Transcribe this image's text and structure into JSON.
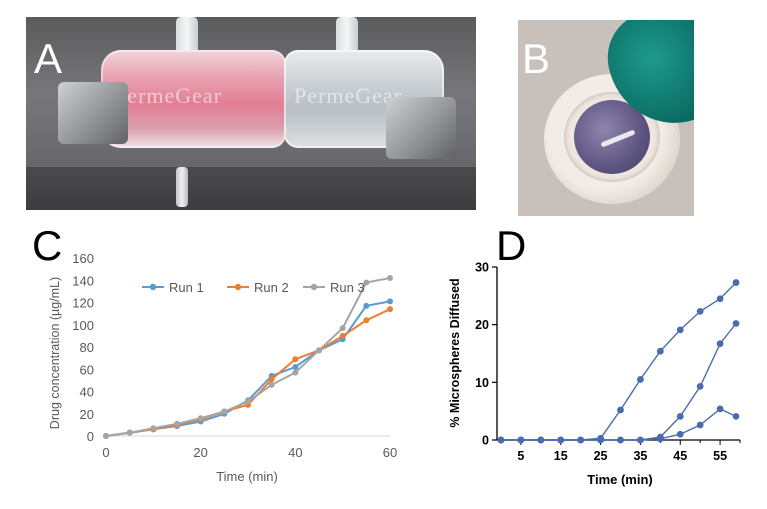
{
  "panels": {
    "a": {
      "letter": "A",
      "brand_left": "PermeGear",
      "brand_right": "PermeGear"
    },
    "b": {
      "letter": "B"
    },
    "c": {
      "letter": "C"
    },
    "d": {
      "letter": "D"
    }
  },
  "colors": {
    "run1": "#5b9bd5",
    "run2": "#ed7d31",
    "run3": "#a5a5a5",
    "panel_d_series": "#4a6cae",
    "axis_c": "#d9d9d9",
    "text_c": "#595959"
  },
  "chart_data": [
    {
      "id": "C",
      "type": "line",
      "title": "",
      "xlabel": "Time (min)",
      "ylabel": "Drug concentration (µg/mL)",
      "xlim": [
        0,
        60
      ],
      "ylim": [
        0,
        160
      ],
      "xticks": [
        0,
        20,
        40,
        60
      ],
      "yticks": [
        0,
        20,
        40,
        60,
        80,
        100,
        120,
        140,
        160
      ],
      "grid": false,
      "legend": "top",
      "x": [
        0,
        5,
        10,
        15,
        20,
        25,
        30,
        35,
        40,
        45,
        50,
        55,
        60
      ],
      "series": [
        {
          "name": "Run 1",
          "values": [
            0,
            3,
            6,
            9,
            13,
            20,
            32,
            54,
            62,
            77,
            87,
            117,
            121
          ]
        },
        {
          "name": "Run 2",
          "values": [
            0,
            3,
            6,
            10,
            15,
            22,
            28,
            51,
            69,
            77,
            90,
            104,
            114
          ]
        },
        {
          "name": "Run 3",
          "values": [
            0,
            3,
            7,
            11,
            16,
            22,
            31,
            46,
            57,
            77,
            97,
            138,
            142
          ]
        }
      ]
    },
    {
      "id": "D",
      "type": "line",
      "title": "",
      "xlabel": "Time (min)",
      "ylabel": "% Microspheres Diffused",
      "xlim": [
        -1,
        60
      ],
      "ylim": [
        0,
        30
      ],
      "xticks": [
        5,
        15,
        25,
        35,
        45,
        55
      ],
      "yticks": [
        0,
        10,
        20,
        30
      ],
      "grid": false,
      "legend": "none",
      "series": [
        {
          "x": [
            0,
            5,
            10,
            15,
            20,
            25,
            30,
            35,
            40,
            45,
            50,
            55,
            59
          ],
          "values": [
            0,
            0,
            0,
            0,
            0,
            0.3,
            5.2,
            10.5,
            15.4,
            19.1,
            22.3,
            24.5,
            27.3
          ]
        },
        {
          "x": [
            0,
            5,
            10,
            15,
            20,
            25,
            30,
            35,
            40,
            45,
            50,
            55,
            59
          ],
          "values": [
            0,
            0,
            0,
            0,
            0,
            0,
            0,
            0,
            0.5,
            4.1,
            9.3,
            16.7,
            20.2
          ]
        },
        {
          "x": [
            0,
            5,
            10,
            15,
            20,
            25,
            30,
            35,
            40,
            45,
            50,
            55,
            59
          ],
          "values": [
            0,
            0,
            0,
            0,
            0,
            0,
            0,
            0,
            0.2,
            1.0,
            2.6,
            5.4,
            4.1
          ]
        }
      ]
    }
  ]
}
